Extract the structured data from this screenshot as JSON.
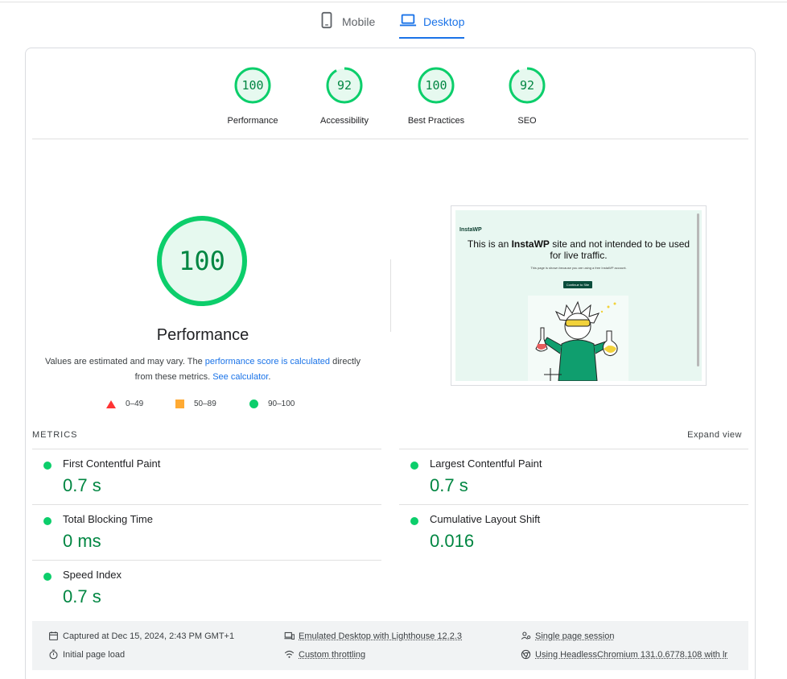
{
  "tabs": [
    {
      "label": "Mobile",
      "icon": "smartphone-icon",
      "active": false
    },
    {
      "label": "Desktop",
      "icon": "laptop-icon",
      "active": true
    }
  ],
  "colors": {
    "pass": "#0cce6b",
    "pass_text": "#018642",
    "average": "#ffaa33",
    "fail": "#ff3333",
    "accent": "#1a73e8"
  },
  "gauges": [
    {
      "score": "100",
      "label": "Performance"
    },
    {
      "score": "92",
      "label": "Accessibility"
    },
    {
      "score": "100",
      "label": "Best Practices"
    },
    {
      "score": "92",
      "label": "SEO"
    }
  ],
  "performance": {
    "score": "100",
    "title": "Performance",
    "desc_start": "Values are estimated and may vary. The ",
    "desc_link1": "performance score is calculated",
    "desc_mid": " directly from these metrics. ",
    "desc_link2": "See calculator",
    "desc_end": "."
  },
  "legend": [
    {
      "range": "0–49",
      "shape": "triangle"
    },
    {
      "range": "50–89",
      "shape": "square"
    },
    {
      "range": "90–100",
      "shape": "circle"
    }
  ],
  "screenshot": {
    "logo": "InstaWP",
    "heading_pre": "This is an ",
    "heading_bold": "InstaWP",
    "heading_post": " site and not intended to be used for live traffic.",
    "small": "This page is shown because you are using a free InstaWP account.",
    "button": "Continue to Site"
  },
  "metrics": {
    "header": "METRICS",
    "expand": "Expand view",
    "items": [
      {
        "title": "First Contentful Paint",
        "value": "0.7 s"
      },
      {
        "title": "Largest Contentful Paint",
        "value": "0.7 s"
      },
      {
        "title": "Total Blocking Time",
        "value": "0 ms"
      },
      {
        "title": "Cumulative Layout Shift",
        "value": "0.016"
      },
      {
        "title": "Speed Index",
        "value": "0.7 s"
      }
    ]
  },
  "footer": {
    "captured": "Captured at Dec 15, 2024, 2:43 PM GMT+1",
    "initial": "Initial page load",
    "emulated": "Emulated Desktop with Lighthouse 12.2.3",
    "throttling": "Custom throttling",
    "session": "Single page session",
    "browser": "Using HeadlessChromium 131.0.6778.108 with lr"
  }
}
